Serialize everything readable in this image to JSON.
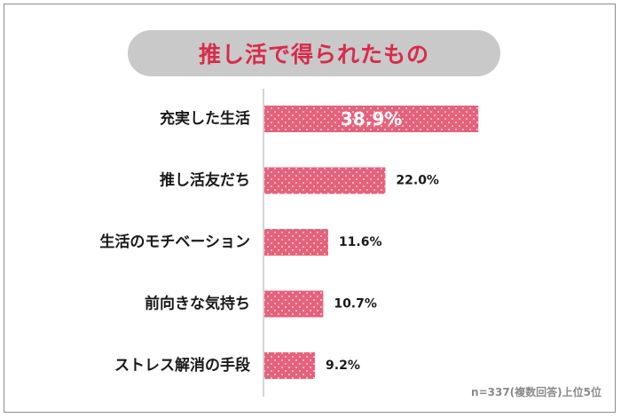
{
  "chart_data": {
    "type": "bar",
    "orientation": "horizontal",
    "title": "推し活で得られたもの",
    "categories": [
      "充実した生活",
      "推し活友だち",
      "生活のモチベーション",
      "前向きな気持ち",
      "ストレス解消の手段"
    ],
    "values": [
      38.9,
      22.0,
      11.6,
      10.7,
      9.2
    ],
    "value_labels": [
      "38.9%",
      "22.0%",
      "11.6%",
      "10.7%",
      "9.2%"
    ],
    "xlim": [
      0,
      40
    ],
    "grid": false,
    "bar_color": "#e5627c",
    "title_color": "#d92b4b",
    "note": "n=337(複数回答)上位5位"
  }
}
